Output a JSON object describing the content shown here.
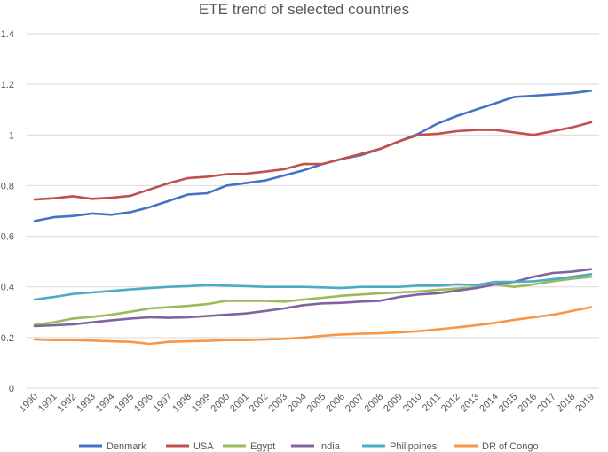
{
  "chart_data": {
    "type": "line",
    "title": "ETE trend of selected countries",
    "xlabel": "",
    "ylabel": "",
    "ylim": [
      0,
      1.4
    ],
    "yticks": [
      0,
      0.2,
      0.4,
      0.6,
      0.8,
      1,
      1.2,
      1.4
    ],
    "ytick_labels": [
      "0",
      "0.2",
      "0.4",
      "0.6",
      "0.8",
      "1",
      "1.2",
      "1.4"
    ],
    "grid": true,
    "legend_position": "bottom",
    "categories": [
      "1990",
      "1991",
      "1992",
      "1993",
      "1994",
      "1995",
      "1996",
      "1997",
      "1998",
      "1999",
      "2000",
      "2001",
      "2002",
      "2003",
      "2004",
      "2005",
      "2006",
      "2007",
      "2008",
      "2009",
      "2010",
      "2011",
      "2012",
      "2013",
      "2014",
      "2015",
      "2016",
      "2017",
      "2018",
      "2019"
    ],
    "series": [
      {
        "name": "Denmark",
        "color": "#4472c4",
        "values": [
          0.66,
          0.675,
          0.68,
          0.69,
          0.685,
          0.695,
          0.715,
          0.74,
          0.765,
          0.77,
          0.8,
          0.81,
          0.82,
          0.84,
          0.86,
          0.885,
          0.905,
          0.92,
          0.945,
          0.975,
          1.005,
          1.045,
          1.075,
          1.1,
          1.125,
          1.15,
          1.155,
          1.16,
          1.165,
          1.175
        ]
      },
      {
        "name": "USA",
        "color": "#c0504d",
        "values": [
          0.745,
          0.75,
          0.758,
          0.748,
          0.752,
          0.76,
          0.785,
          0.81,
          0.83,
          0.835,
          0.845,
          0.847,
          0.855,
          0.865,
          0.885,
          0.885,
          0.905,
          0.925,
          0.945,
          0.975,
          1.0,
          1.005,
          1.015,
          1.02,
          1.02,
          1.01,
          1.0,
          1.015,
          1.03,
          1.05
        ]
      },
      {
        "name": "Egypt",
        "color": "#9bbb59",
        "values": [
          0.25,
          0.26,
          0.275,
          0.282,
          0.29,
          0.302,
          0.315,
          0.32,
          0.325,
          0.332,
          0.345,
          0.345,
          0.345,
          0.342,
          0.35,
          0.357,
          0.365,
          0.37,
          0.375,
          0.378,
          0.382,
          0.388,
          0.393,
          0.398,
          0.41,
          0.4,
          0.41,
          0.422,
          0.432,
          0.44
        ]
      },
      {
        "name": "India",
        "color": "#8064a2",
        "values": [
          0.245,
          0.248,
          0.252,
          0.26,
          0.268,
          0.275,
          0.28,
          0.278,
          0.28,
          0.285,
          0.29,
          0.295,
          0.305,
          0.315,
          0.328,
          0.335,
          0.337,
          0.342,
          0.345,
          0.36,
          0.37,
          0.375,
          0.385,
          0.395,
          0.41,
          0.42,
          0.44,
          0.455,
          0.46,
          0.47
        ]
      },
      {
        "name": "Philippines",
        "color": "#4bacc6",
        "values": [
          0.35,
          0.36,
          0.372,
          0.378,
          0.384,
          0.39,
          0.395,
          0.4,
          0.403,
          0.407,
          0.405,
          0.403,
          0.4,
          0.4,
          0.4,
          0.398,
          0.395,
          0.4,
          0.4,
          0.4,
          0.405,
          0.405,
          0.41,
          0.407,
          0.42,
          0.42,
          0.422,
          0.43,
          0.44,
          0.45
        ]
      },
      {
        "name": "DR of Congo",
        "color": "#f79646",
        "values": [
          0.193,
          0.19,
          0.19,
          0.188,
          0.185,
          0.183,
          0.175,
          0.183,
          0.185,
          0.187,
          0.19,
          0.19,
          0.192,
          0.195,
          0.2,
          0.207,
          0.212,
          0.215,
          0.217,
          0.22,
          0.225,
          0.232,
          0.24,
          0.248,
          0.258,
          0.27,
          0.28,
          0.29,
          0.305,
          0.32
        ]
      }
    ]
  }
}
